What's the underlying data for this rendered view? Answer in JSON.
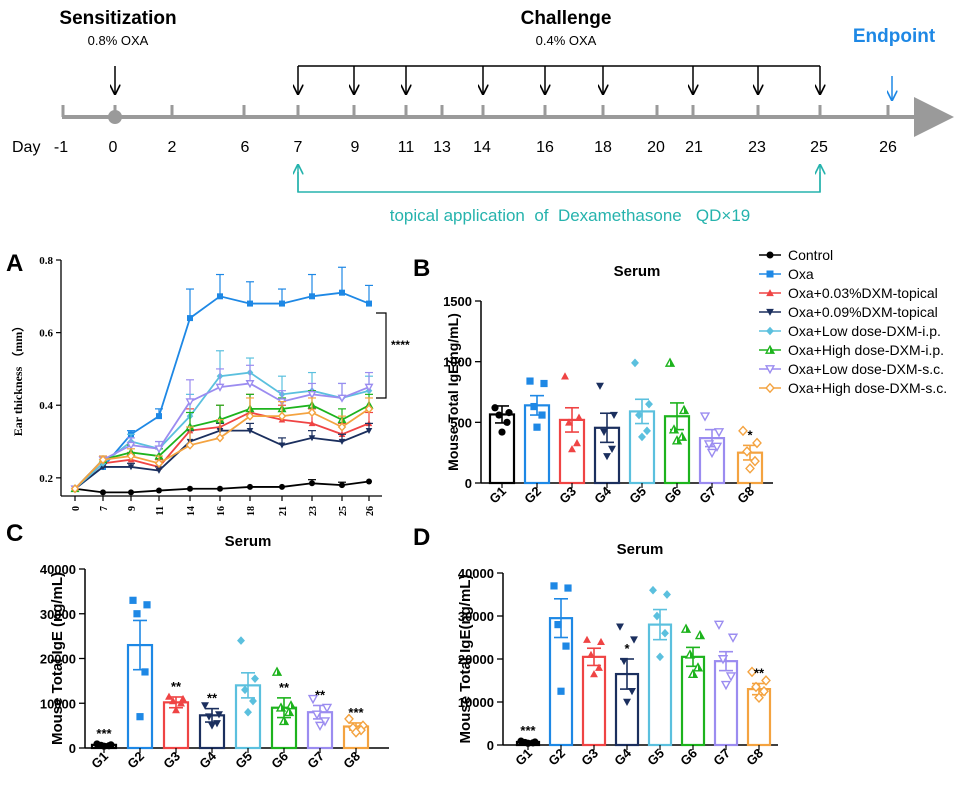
{
  "timeline": {
    "sensitization": {
      "title": "Sensitization",
      "sub": "0.8% OXA"
    },
    "challenge": {
      "title": "Challenge",
      "sub": "0.4% OXA"
    },
    "endpoint": "Endpoint",
    "day_label": "Day",
    "days": [
      "-1",
      "0",
      "2",
      "6",
      "7",
      "9",
      "11",
      "13",
      "14",
      "16",
      "18",
      "20",
      "21",
      "23",
      "25",
      "26"
    ],
    "treatment": "topical application  of  Dexamethasone   QD×19",
    "colors": {
      "endpoint": "#1e88e5",
      "treatment": "#26b3ad",
      "axis": "#9a9a9a"
    }
  },
  "legend": [
    {
      "label": "Control",
      "color": "#000000",
      "marker": "circle"
    },
    {
      "label": "Oxa",
      "color": "#1e88e5",
      "marker": "square"
    },
    {
      "label": "Oxa+0.03%DXM-topical",
      "color": "#ef4444",
      "marker": "triangle-up"
    },
    {
      "label": "Oxa+0.09%DXM-topical",
      "color": "#1b2f5e",
      "marker": "triangle-down"
    },
    {
      "label": "Oxa+Low dose-DXM-i.p.",
      "color": "#5bc0de",
      "marker": "diamond"
    },
    {
      "label": "Oxa+High dose-DXM-i.p.",
      "color": "#1db31d",
      "marker": "half-triangle"
    },
    {
      "label": "Oxa+Low dose-DXM-s.c.",
      "color": "#9b8cf0",
      "marker": "open-triangle-down"
    },
    {
      "label": "Oxa+High dose-DXM-s.c.",
      "color": "#f4a340",
      "marker": "open-diamond"
    }
  ],
  "chart_data": [
    {
      "panel": "A",
      "type": "line",
      "title": "",
      "xlabel": "",
      "ylabel": "Ear thickness （mm）",
      "categories": [
        "0",
        "7",
        "9",
        "11",
        "14",
        "16",
        "18",
        "21",
        "23",
        "25",
        "26"
      ],
      "ylim": [
        0.15,
        0.8
      ],
      "yticks": [
        "0.2",
        "0.4",
        "0.6",
        "0.8"
      ],
      "significance": "****",
      "series": [
        {
          "name": "Control",
          "values": [
            0.17,
            0.16,
            0.16,
            0.165,
            0.17,
            0.17,
            0.175,
            0.175,
            0.185,
            0.18,
            0.19
          ],
          "errors": [
            0.005,
            0.005,
            0.005,
            0.005,
            0.005,
            0.005,
            0.005,
            0.005,
            0.01,
            0.008,
            0.005
          ]
        },
        {
          "name": "Oxa",
          "values": [
            0.17,
            0.23,
            0.32,
            0.37,
            0.64,
            0.7,
            0.68,
            0.68,
            0.7,
            0.71,
            0.68
          ],
          "errors": [
            0.005,
            0.01,
            0.01,
            0.02,
            0.08,
            0.06,
            0.06,
            0.04,
            0.06,
            0.07,
            0.05
          ]
        },
        {
          "name": "Oxa+0.03%DXM-topical",
          "values": [
            0.17,
            0.24,
            0.25,
            0.23,
            0.33,
            0.34,
            0.38,
            0.36,
            0.35,
            0.32,
            0.35
          ],
          "errors": [
            0.005,
            0.02,
            0.02,
            0.02,
            0.06,
            0.06,
            0.05,
            0.04,
            0.04,
            0.03,
            0.03
          ]
        },
        {
          "name": "Oxa+0.09%DXM-topical",
          "values": [
            0.17,
            0.23,
            0.23,
            0.22,
            0.3,
            0.33,
            0.33,
            0.29,
            0.31,
            0.3,
            0.33
          ],
          "errors": [
            0.005,
            0.01,
            0.01,
            0.01,
            0.03,
            0.02,
            0.02,
            0.02,
            0.02,
            0.02,
            0.02
          ]
        },
        {
          "name": "Oxa+Low dose-DXM-i.p.",
          "values": [
            0.17,
            0.24,
            0.3,
            0.28,
            0.37,
            0.48,
            0.49,
            0.43,
            0.44,
            0.42,
            0.44
          ],
          "errors": [
            0.005,
            0.01,
            0.02,
            0.02,
            0.06,
            0.07,
            0.04,
            0.05,
            0.05,
            0.04,
            0.04
          ]
        },
        {
          "name": "Oxa+High dose-DXM-i.p.",
          "values": [
            0.17,
            0.25,
            0.27,
            0.26,
            0.34,
            0.36,
            0.39,
            0.39,
            0.4,
            0.36,
            0.4
          ],
          "errors": [
            0.005,
            0.01,
            0.02,
            0.02,
            0.04,
            0.04,
            0.04,
            0.03,
            0.04,
            0.03,
            0.03
          ]
        },
        {
          "name": "Oxa+Low dose-DXM-s.c.",
          "values": [
            0.17,
            0.25,
            0.29,
            0.28,
            0.41,
            0.45,
            0.46,
            0.41,
            0.43,
            0.42,
            0.45
          ],
          "errors": [
            0.005,
            0.01,
            0.02,
            0.02,
            0.06,
            0.05,
            0.05,
            0.03,
            0.03,
            0.04,
            0.04
          ]
        },
        {
          "name": "Oxa+High dose-DXM-s.c.",
          "values": [
            0.17,
            0.25,
            0.26,
            0.24,
            0.29,
            0.31,
            0.37,
            0.37,
            0.38,
            0.34,
            0.39
          ],
          "errors": [
            0.005,
            0.01,
            0.02,
            0.02,
            0.05,
            0.05,
            0.05,
            0.04,
            0.04,
            0.03,
            0.03
          ]
        }
      ]
    },
    {
      "panel": "B",
      "type": "bar",
      "title": "Serum",
      "xlabel": "",
      "ylabel": "Mouse Total IgE(ng/mL)",
      "categories": [
        "G1",
        "G2",
        "G3",
        "G4",
        "G5",
        "G6",
        "G7",
        "G8"
      ],
      "ylim": [
        0,
        1500
      ],
      "yticks": [
        "0",
        "500",
        "1000",
        "1500"
      ],
      "values": [
        565,
        640,
        520,
        455,
        590,
        550,
        370,
        250
      ],
      "errors": [
        70,
        80,
        100,
        120,
        100,
        110,
        70,
        60
      ],
      "points": [
        [
          620,
          580,
          560,
          500,
          420
        ],
        [
          840,
          820,
          630,
          560,
          460
        ],
        [
          880,
          540,
          500,
          330,
          280
        ],
        [
          800,
          560,
          420,
          280,
          220
        ],
        [
          990,
          650,
          560,
          430,
          380
        ],
        [
          990,
          600,
          440,
          380,
          350
        ],
        [
          550,
          420,
          320,
          300,
          250
        ],
        [
          430,
          330,
          260,
          180,
          120
        ]
      ],
      "significance": [
        "",
        "",
        "",
        "",
        "",
        "",
        "",
        "*"
      ]
    },
    {
      "panel": "C",
      "type": "bar",
      "title": "Serum",
      "xlabel": "",
      "ylabel": "Mouse Total IgE (ng/mL)",
      "categories": [
        "G1",
        "G2",
        "G3",
        "G4",
        "G5",
        "G6",
        "G7",
        "G8"
      ],
      "ylim": [
        0,
        40000
      ],
      "yticks": [
        "0",
        "10000",
        "20000",
        "30000",
        "40000"
      ],
      "values": [
        700,
        23000,
        10200,
        7300,
        14000,
        9000,
        8000,
        4800
      ],
      "errors": [
        200,
        5500,
        1200,
        1500,
        2800,
        2200,
        1500,
        800
      ],
      "points": [
        [
          900,
          700,
          600,
          500,
          400
        ],
        [
          33000,
          32000,
          30000,
          17000,
          7000
        ],
        [
          11500,
          11000,
          10500,
          10000,
          8500
        ],
        [
          9500,
          7500,
          7000,
          5500,
          5000
        ],
        [
          24000,
          15500,
          13000,
          10500,
          8000
        ],
        [
          17000,
          9500,
          9000,
          8000,
          6000
        ],
        [
          11000,
          9000,
          7500,
          6000,
          5000
        ],
        [
          6500,
          5000,
          4500,
          4000,
          3500
        ]
      ],
      "significance": [
        "***",
        "",
        "**",
        "**",
        "",
        "**",
        "**",
        "***"
      ]
    },
    {
      "panel": "D",
      "type": "bar",
      "title": "Serum",
      "xlabel": "",
      "ylabel": "Mouse Total IgE(ng/mL)",
      "categories": [
        "G1",
        "G2",
        "G3",
        "G4",
        "G5",
        "G6",
        "G7",
        "G8"
      ],
      "ylim": [
        0,
        40000
      ],
      "yticks": [
        "0",
        "10000",
        "20000",
        "30000",
        "40000"
      ],
      "values": [
        700,
        29500,
        20500,
        16500,
        28000,
        20500,
        19500,
        13000
      ],
      "errors": [
        200,
        4500,
        2000,
        3500,
        3500,
        2200,
        2200,
        1300
      ],
      "points": [
        [
          900,
          700,
          600,
          500,
          400
        ],
        [
          37000,
          36500,
          28000,
          23000,
          12500
        ],
        [
          24500,
          24000,
          21000,
          18000,
          16500
        ],
        [
          27500,
          24500,
          19500,
          12500,
          10000
        ],
        [
          36000,
          35000,
          30000,
          26000,
          20500
        ],
        [
          27000,
          25500,
          21000,
          18000,
          16500
        ],
        [
          28000,
          25000,
          20000,
          16000,
          14000
        ],
        [
          17000,
          15000,
          13500,
          12500,
          11000
        ]
      ],
      "significance": [
        "***",
        "",
        "",
        "*",
        "",
        "",
        "",
        "**"
      ]
    }
  ]
}
